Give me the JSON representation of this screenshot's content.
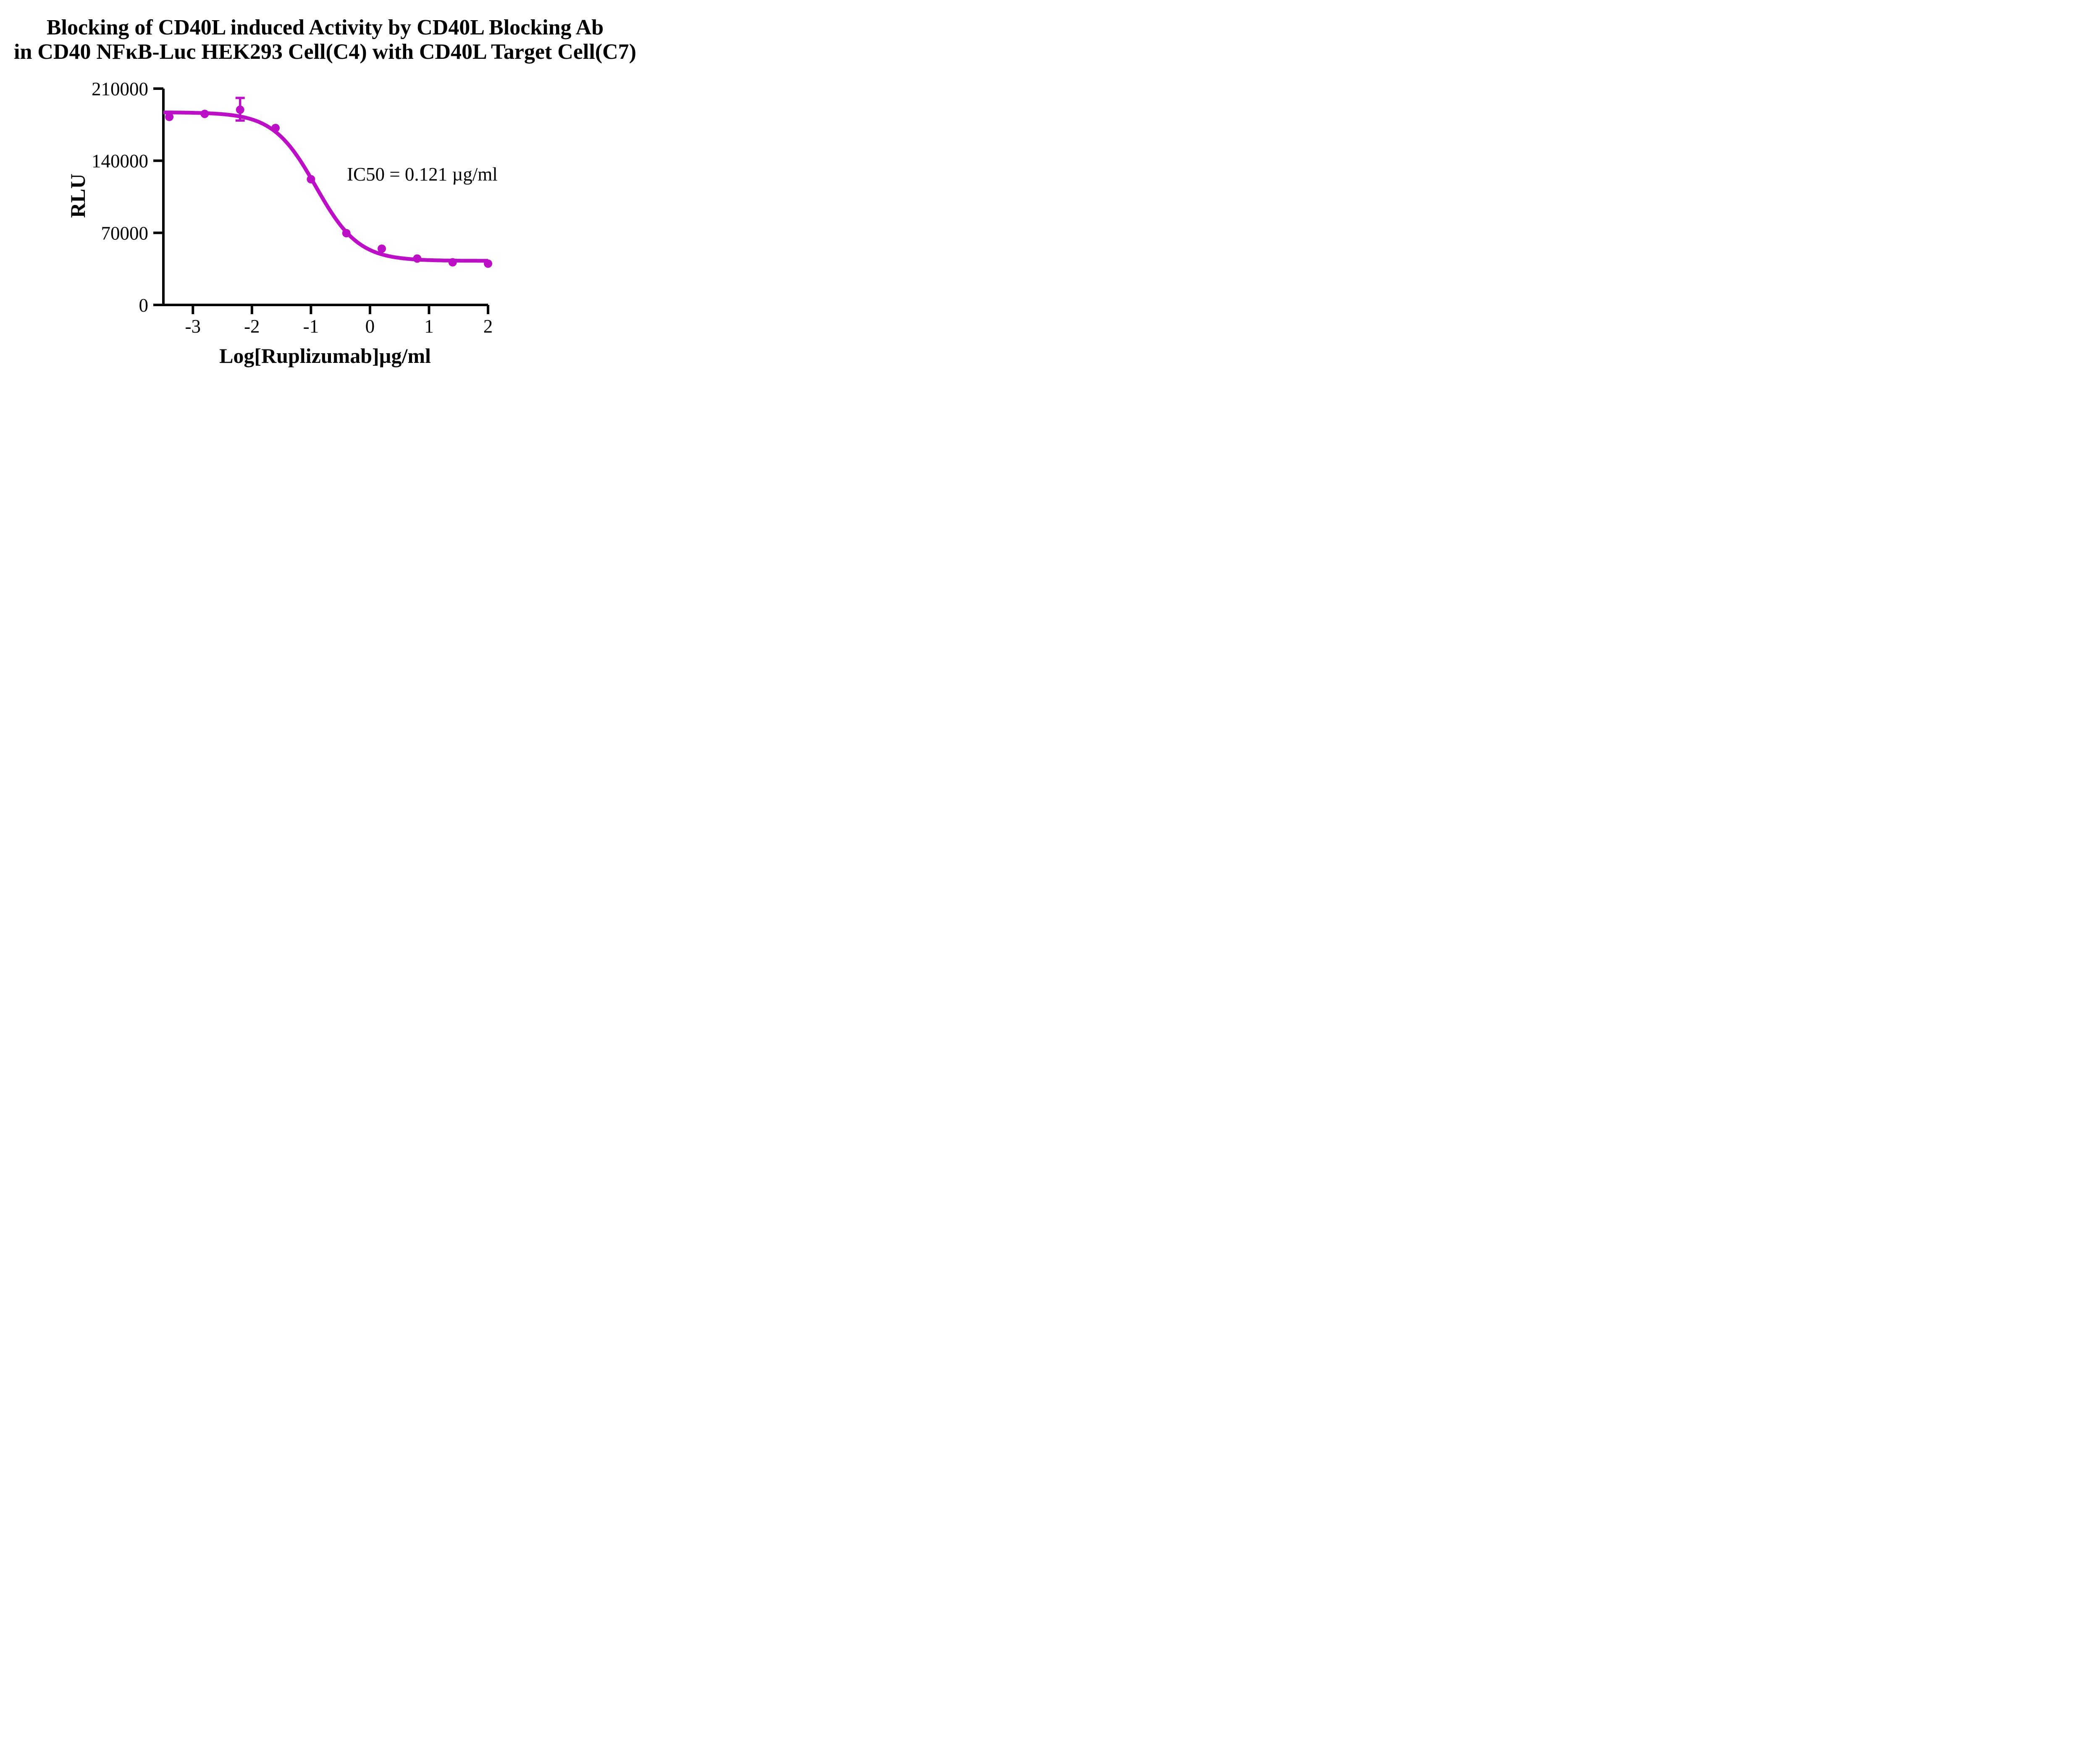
{
  "title": {
    "line1": "Blocking of CD40L induced Activity by CD40L Blocking Ab",
    "line2": "in CD40 NFκB-Luc HEK293 Cell(C4) with CD40L Target Cell(C7)"
  },
  "chart_data": {
    "type": "scatter",
    "title": "Blocking of CD40L induced Activity by CD40L Blocking Ab in CD40 NFκB-Luc HEK293 Cell(C4) with CD40L Target Cell(C7)",
    "xlabel": "Log[Ruplizumab]µg/ml",
    "ylabel": "RLU",
    "annotation": "IC50 = 0.121 µg/ml",
    "ic50_value_ug_ml": 0.121,
    "xlim": [
      -3.5,
      2
    ],
    "ylim": [
      0,
      210000
    ],
    "x_ticks": [
      -3,
      -2,
      -1,
      0,
      1,
      2
    ],
    "y_ticks": [
      0,
      70000,
      140000,
      210000
    ],
    "grid": false,
    "legend": "none",
    "axis_color": "#000000",
    "series": [
      {
        "name": "Ruplizumab",
        "color": "#BB10C6",
        "points": [
          {
            "x": -3.4,
            "y": 182500
          },
          {
            "x": -2.8,
            "y": 185500
          },
          {
            "x": -2.2,
            "y": 189500,
            "error_plus": 11500,
            "error_minus": 10500
          },
          {
            "x": -1.6,
            "y": 171800
          },
          {
            "x": -1.0,
            "y": 122000
          },
          {
            "x": -0.4,
            "y": 69700
          },
          {
            "x": 0.2,
            "y": 54600
          },
          {
            "x": 0.8,
            "y": 45000
          },
          {
            "x": 1.4,
            "y": 41400
          },
          {
            "x": 2.0,
            "y": 40100
          }
        ],
        "fit_curve": {
          "model": "4PL_inhibition",
          "top": 187000,
          "bottom": 42800,
          "log_ic50": -0.917,
          "hill_slope": 1.2,
          "x_range": [
            -3.5,
            2.0
          ]
        }
      }
    ]
  }
}
